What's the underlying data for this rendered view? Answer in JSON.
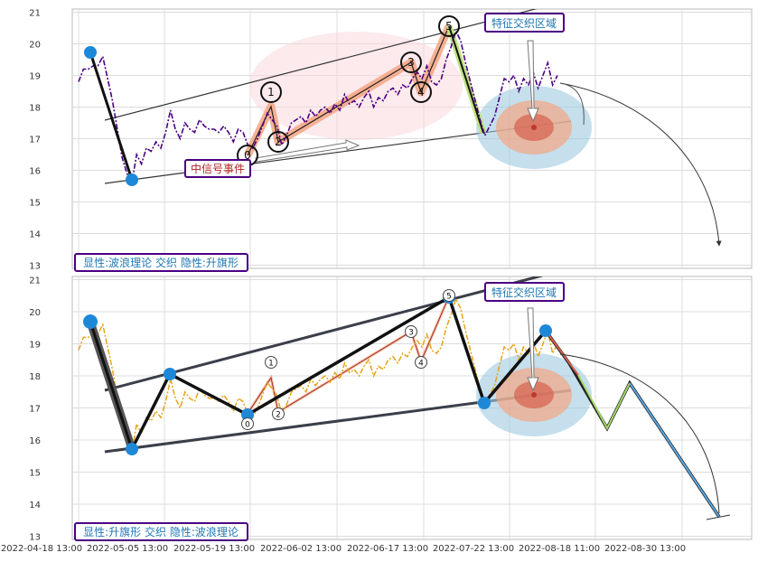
{
  "colors": {
    "background": "#ffffff",
    "grid": "#dcdcdc",
    "top_series": "#4b0082",
    "bottom_series": "#e8a317",
    "pivot": "#1e88d8",
    "channel": "#333333",
    "wave_band": "#f4a582",
    "label_border": "#4b0082",
    "label_text_blue": "#1f77b4",
    "label_text_red": "#b22222",
    "zone_outer": "#9ecae1",
    "zone_mid": "#f4a582",
    "zone_inner": "#d6604d",
    "green_leg": "#bfe380",
    "projection_down": "#5aa9e6",
    "projection_green": "#a6d96a"
  },
  "chart_data": [
    {
      "type": "line",
      "panel": "top",
      "ylim": [
        12.9,
        21.1
      ],
      "yticks": [
        13,
        14,
        15,
        16,
        17,
        18,
        19,
        20,
        21
      ],
      "xlim": [
        0,
        131
      ],
      "grid": true,
      "series": [
        {
          "x": [
            0,
            1,
            2,
            3,
            4,
            5,
            6,
            7,
            8,
            9,
            10,
            11,
            12,
            13,
            14,
            15,
            16,
            17,
            18,
            19,
            20,
            21,
            22,
            23,
            24,
            25,
            26,
            27,
            28,
            29,
            30,
            31,
            32,
            33,
            34,
            35,
            36,
            37,
            38,
            39,
            40,
            41,
            42,
            43,
            44,
            45,
            46,
            47,
            48,
            49,
            50,
            51,
            52,
            53,
            54,
            55,
            56,
            57,
            58,
            59,
            60,
            61,
            62,
            63,
            64,
            65,
            66,
            67,
            68,
            69,
            70,
            71,
            72,
            73,
            74,
            75,
            76,
            77,
            78,
            79,
            80,
            81,
            82,
            83,
            84,
            85,
            86,
            87,
            88,
            89,
            90,
            91,
            92,
            93,
            94,
            95,
            96,
            97,
            98,
            99
          ],
          "y": [
            18.8,
            19.2,
            19.2,
            19.3,
            19.3,
            19.6,
            18.9,
            18.2,
            17.3,
            16.4,
            15.9,
            15.6,
            16.5,
            16.2,
            16.7,
            16.6,
            16.9,
            16.7,
            17.2,
            17.9,
            17.3,
            17.0,
            17.5,
            17.3,
            17.2,
            17.6,
            17.4,
            17.3,
            17.3,
            17.2,
            17.4,
            17.2,
            16.9,
            17.3,
            17.2,
            16.8,
            16.7,
            17.0,
            17.4,
            17.8,
            17.6,
            17.4,
            16.8,
            17.1,
            17.5,
            17.6,
            17.7,
            17.5,
            17.9,
            17.7,
            17.9,
            18.0,
            17.8,
            18.1,
            17.9,
            18.4,
            18.1,
            18.2,
            18.0,
            18.3,
            18.5,
            18.0,
            18.3,
            18.2,
            18.5,
            18.6,
            18.4,
            18.7,
            18.6,
            18.9,
            19.1,
            18.9,
            19.3,
            18.8,
            18.7,
            18.9,
            19.5,
            19.9,
            20.4,
            20.1,
            19.4,
            18.8,
            18.2,
            17.6,
            17.1,
            17.4,
            17.7,
            18.3,
            18.9,
            18.8,
            19.0,
            18.5,
            18.9,
            18.7,
            19.1,
            18.6,
            19.0,
            19.4,
            18.7,
            19.0
          ]
        }
      ],
      "wave_labels": [
        "0",
        "1",
        "2",
        "3",
        "4",
        "5"
      ],
      "annotations": [
        "特征交织区域",
        "中信号事件",
        "显性:波浪理论 交织 隐性:升旗形"
      ]
    },
    {
      "type": "line",
      "panel": "bottom",
      "ylim": [
        12.9,
        21.1
      ],
      "yticks": [
        13,
        14,
        15,
        16,
        17,
        18,
        19,
        20,
        21
      ],
      "xlim": [
        0,
        131
      ],
      "grid": true,
      "series": [
        {
          "x": [
            0,
            1,
            2,
            3,
            4,
            5,
            6,
            7,
            8,
            9,
            10,
            11,
            12,
            13,
            14,
            15,
            16,
            17,
            18,
            19,
            20,
            21,
            22,
            23,
            24,
            25,
            26,
            27,
            28,
            29,
            30,
            31,
            32,
            33,
            34,
            35,
            36,
            37,
            38,
            39,
            40,
            41,
            42,
            43,
            44,
            45,
            46,
            47,
            48,
            49,
            50,
            51,
            52,
            53,
            54,
            55,
            56,
            57,
            58,
            59,
            60,
            61,
            62,
            63,
            64,
            65,
            66,
            67,
            68,
            69,
            70,
            71,
            72,
            73,
            74,
            75,
            76,
            77,
            78,
            79,
            80,
            81,
            82,
            83,
            84,
            85,
            86,
            87,
            88,
            89,
            90,
            91,
            92,
            93,
            94,
            95,
            96,
            97,
            98,
            99
          ],
          "y": [
            18.8,
            19.2,
            19.2,
            19.3,
            19.3,
            19.6,
            18.9,
            18.2,
            17.3,
            16.4,
            15.9,
            15.6,
            16.5,
            16.2,
            16.7,
            16.6,
            16.9,
            16.7,
            17.2,
            17.9,
            17.3,
            17.0,
            17.5,
            17.3,
            17.2,
            17.6,
            17.4,
            17.3,
            17.3,
            17.2,
            17.4,
            17.2,
            16.9,
            17.3,
            17.2,
            16.8,
            16.7,
            17.0,
            17.4,
            17.8,
            17.6,
            17.4,
            16.8,
            17.1,
            17.5,
            17.6,
            17.7,
            17.5,
            17.9,
            17.7,
            17.9,
            18.0,
            17.8,
            18.1,
            17.9,
            18.4,
            18.1,
            18.2,
            18.0,
            18.3,
            18.5,
            18.0,
            18.3,
            18.2,
            18.5,
            18.6,
            18.4,
            18.7,
            18.6,
            18.9,
            19.1,
            18.9,
            19.3,
            18.8,
            18.7,
            18.9,
            19.5,
            19.9,
            20.4,
            20.1,
            19.4,
            18.8,
            18.2,
            17.6,
            17.1,
            17.4,
            17.7,
            18.3,
            18.9,
            18.8,
            19.0,
            18.5,
            18.9,
            18.7,
            19.1,
            18.6,
            19.0,
            19.4,
            18.7,
            19.0
          ]
        }
      ],
      "wave_labels": [
        "0",
        "1",
        "2",
        "3",
        "4",
        "5"
      ],
      "annotations": [
        "特征交织区域",
        "显性:升旗形 交织 隐性:波浪理论"
      ]
    }
  ],
  "x_tick_labels": [
    "2022-04-18 13:00",
    "2022-05-05 13:00",
    "2022-05-19 13:00",
    "2022-06-02 13:00",
    "2022-06-17 13:00",
    "2022-07-22 13:00",
    "2022-08-18 11:00",
    "2022-08-30 13:00"
  ],
  "top_labels": {
    "zone": "特征交织区域",
    "signal": "中信号事件",
    "pattern": "显性:波浪理论 交织 隐性:升旗形"
  },
  "bottom_labels": {
    "zone": "特征交织区域",
    "pattern": "显性:升旗形 交织 隐性:波浪理论"
  }
}
